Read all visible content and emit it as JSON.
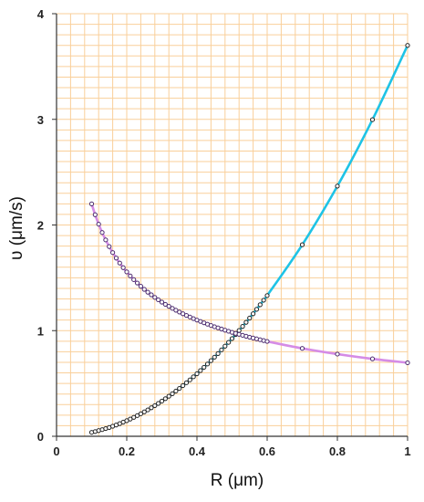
{
  "chart_data": {
    "type": "scatter",
    "xlabel": "R (μm)",
    "ylabel": "υ (μm/s)",
    "xlim": [
      0,
      1
    ],
    "ylim": [
      0,
      4
    ],
    "x_ticks": [
      0,
      0.2,
      0.4,
      0.6,
      0.8,
      1
    ],
    "x_tick_labels": [
      "0",
      "0.2",
      "0.4",
      "0.6",
      "0.8",
      "1"
    ],
    "y_ticks": [
      0,
      1,
      2,
      3,
      4
    ],
    "y_tick_labels": [
      "0",
      "1",
      "2",
      "3",
      "4"
    ],
    "grid": true,
    "grid_color": "#f9cf9a",
    "legend": "none",
    "series": [
      {
        "color": "#1ec3e6",
        "marker_color": "#222222",
        "line": "smooth",
        "points": [
          [
            0.1,
            0.037
          ],
          [
            0.11,
            0.045
          ],
          [
            0.12,
            0.054
          ],
          [
            0.13,
            0.063
          ],
          [
            0.14,
            0.073
          ],
          [
            0.15,
            0.083
          ],
          [
            0.16,
            0.095
          ],
          [
            0.17,
            0.107
          ],
          [
            0.18,
            0.12
          ],
          [
            0.19,
            0.134
          ],
          [
            0.2,
            0.148
          ],
          [
            0.21,
            0.163
          ],
          [
            0.22,
            0.179
          ],
          [
            0.23,
            0.196
          ],
          [
            0.24,
            0.213
          ],
          [
            0.25,
            0.231
          ],
          [
            0.26,
            0.25
          ],
          [
            0.27,
            0.27
          ],
          [
            0.28,
            0.29
          ],
          [
            0.29,
            0.311
          ],
          [
            0.3,
            0.333
          ],
          [
            0.31,
            0.356
          ],
          [
            0.32,
            0.379
          ],
          [
            0.33,
            0.403
          ],
          [
            0.34,
            0.428
          ],
          [
            0.35,
            0.453
          ],
          [
            0.36,
            0.48
          ],
          [
            0.37,
            0.507
          ],
          [
            0.38,
            0.534
          ],
          [
            0.39,
            0.563
          ],
          [
            0.4,
            0.592
          ],
          [
            0.41,
            0.622
          ],
          [
            0.42,
            0.653
          ],
          [
            0.43,
            0.684
          ],
          [
            0.44,
            0.716
          ],
          [
            0.45,
            0.749
          ],
          [
            0.46,
            0.783
          ],
          [
            0.47,
            0.818
          ],
          [
            0.48,
            0.853
          ],
          [
            0.49,
            0.889
          ],
          [
            0.5,
            0.925
          ],
          [
            0.51,
            0.963
          ],
          [
            0.52,
            1.001
          ],
          [
            0.53,
            1.04
          ],
          [
            0.54,
            1.079
          ],
          [
            0.55,
            1.119
          ],
          [
            0.56,
            1.16
          ],
          [
            0.57,
            1.202
          ],
          [
            0.58,
            1.245
          ],
          [
            0.59,
            1.288
          ],
          [
            0.6,
            1.332
          ],
          [
            0.7,
            1.813
          ],
          [
            0.8,
            2.368
          ],
          [
            0.9,
            2.997
          ],
          [
            1.0,
            3.7
          ]
        ]
      },
      {
        "color": "#d58ce6",
        "marker_color": "#4a2a6e",
        "line": "smooth",
        "points": [
          [
            0.1,
            2.2
          ],
          [
            0.11,
            2.097
          ],
          [
            0.12,
            2.008
          ],
          [
            0.13,
            1.929
          ],
          [
            0.14,
            1.859
          ],
          [
            0.15,
            1.796
          ],
          [
            0.16,
            1.739
          ],
          [
            0.17,
            1.687
          ],
          [
            0.18,
            1.64
          ],
          [
            0.19,
            1.596
          ],
          [
            0.2,
            1.556
          ],
          [
            0.21,
            1.518
          ],
          [
            0.22,
            1.483
          ],
          [
            0.23,
            1.451
          ],
          [
            0.24,
            1.42
          ],
          [
            0.25,
            1.391
          ],
          [
            0.26,
            1.364
          ],
          [
            0.27,
            1.339
          ],
          [
            0.28,
            1.315
          ],
          [
            0.29,
            1.292
          ],
          [
            0.3,
            1.27
          ],
          [
            0.31,
            1.249
          ],
          [
            0.32,
            1.23
          ],
          [
            0.33,
            1.211
          ],
          [
            0.34,
            1.193
          ],
          [
            0.35,
            1.176
          ],
          [
            0.36,
            1.16
          ],
          [
            0.37,
            1.144
          ],
          [
            0.38,
            1.129
          ],
          [
            0.39,
            1.114
          ],
          [
            0.4,
            1.1
          ],
          [
            0.41,
            1.087
          ],
          [
            0.42,
            1.074
          ],
          [
            0.43,
            1.061
          ],
          [
            0.44,
            1.049
          ],
          [
            0.45,
            1.037
          ],
          [
            0.46,
            1.026
          ],
          [
            0.47,
            1.015
          ],
          [
            0.48,
            1.004
          ],
          [
            0.49,
            0.994
          ],
          [
            0.5,
            0.984
          ],
          [
            0.51,
            0.974
          ],
          [
            0.52,
            0.965
          ],
          [
            0.53,
            0.956
          ],
          [
            0.54,
            0.947
          ],
          [
            0.55,
            0.938
          ],
          [
            0.56,
            0.93
          ],
          [
            0.57,
            0.922
          ],
          [
            0.58,
            0.914
          ],
          [
            0.59,
            0.906
          ],
          [
            0.6,
            0.898
          ],
          [
            0.7,
            0.832
          ],
          [
            0.8,
            0.778
          ],
          [
            0.9,
            0.733
          ],
          [
            1.0,
            0.696
          ]
        ]
      }
    ]
  }
}
